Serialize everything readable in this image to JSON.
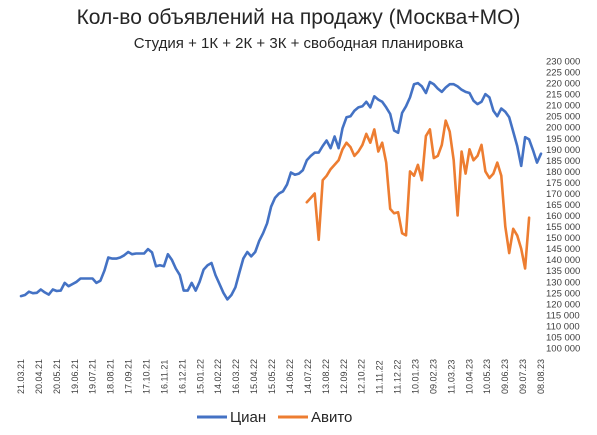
{
  "chart_data": {
    "type": "line",
    "title": "Кол-во объявлений на продажу (Москва+МО)",
    "subtitle": "Студия + 1К + 2К + 3К + свободная планировка",
    "xlabel": "",
    "ylabel": "",
    "ylim": [
      100000,
      230000
    ],
    "y_ticks": [
      "100 000",
      "105 000",
      "110 000",
      "115 000",
      "120 000",
      "125 000",
      "130 000",
      "135 000",
      "140 000",
      "145 000",
      "150 000",
      "155 000",
      "160 000",
      "165 000",
      "170 000",
      "175 000",
      "180 000",
      "185 000",
      "190 000",
      "195 000",
      "200 000",
      "205 000",
      "210 000",
      "215 000",
      "220 000",
      "225 000",
      "230 000"
    ],
    "x_ticks": [
      "21.03.21",
      "20.04.21",
      "20.05.21",
      "19.06.21",
      "19.07.21",
      "18.08.21",
      "17.09.21",
      "17.10.21",
      "16.11.21",
      "16.12.21",
      "15.01.22",
      "14.02.22",
      "16.03.22",
      "15.04.22",
      "15.05.22",
      "14.06.22",
      "14.07.22",
      "13.08.22",
      "12.09.22",
      "12.10.22",
      "11.11.22",
      "11.12.22",
      "10.01.23",
      "09.02.23",
      "11.03.23",
      "10.04.23",
      "10.05.23",
      "09.06.23",
      "09.07.23",
      "08.08.23"
    ],
    "grid": false,
    "legend_position": "bottom",
    "series": [
      {
        "name": "Циан",
        "color": "#4472C4",
        "values": [
          123500,
          124000,
          125500,
          124800,
          125000,
          126500,
          125200,
          124200,
          126500,
          125800,
          126000,
          129500,
          128000,
          129000,
          130000,
          131500,
          131500,
          131500,
          131500,
          129500,
          130500,
          135000,
          141000,
          140500,
          140500,
          141000,
          142000,
          143500,
          142500,
          142800,
          142800,
          142800,
          144800,
          143300,
          137000,
          137500,
          137000,
          142500,
          140000,
          136000,
          133000,
          126000,
          126000,
          129500,
          126000,
          130000,
          135500,
          137500,
          138500,
          133000,
          129000,
          125000,
          122000,
          124000,
          127500,
          134000,
          140500,
          143500,
          141500,
          143500,
          148500,
          152000,
          156500,
          164000,
          168000,
          170000,
          171000,
          174000,
          179500,
          178500,
          179000,
          180500,
          185000,
          187000,
          188500,
          188500,
          191500,
          194000,
          190500,
          195800,
          190500,
          199500,
          204500,
          205000,
          207500,
          209000,
          209500,
          211500,
          209000,
          214000,
          212500,
          211500,
          209000,
          206000,
          198500,
          197500,
          206500,
          209500,
          213500,
          219500,
          220000,
          218500,
          215500,
          220500,
          219500,
          217500,
          216000,
          218000,
          219500,
          219500,
          218500,
          217000,
          216000,
          215500,
          212000,
          210500,
          211500,
          215000,
          213500,
          207500,
          205000,
          208500,
          207000,
          204500,
          198000,
          191500,
          182500,
          195500,
          194500,
          189500,
          184000,
          188000
        ]
      },
      {
        "name": "Авито",
        "color": "#ED7D31",
        "values": [
          null,
          null,
          null,
          null,
          null,
          null,
          null,
          null,
          null,
          null,
          null,
          null,
          null,
          null,
          null,
          null,
          null,
          null,
          null,
          null,
          null,
          null,
          null,
          null,
          null,
          null,
          null,
          null,
          null,
          null,
          null,
          null,
          null,
          null,
          null,
          null,
          null,
          null,
          null,
          null,
          null,
          null,
          null,
          null,
          null,
          null,
          null,
          null,
          null,
          null,
          null,
          null,
          null,
          null,
          null,
          null,
          null,
          null,
          null,
          null,
          null,
          null,
          null,
          null,
          null,
          null,
          null,
          null,
          null,
          null,
          null,
          null,
          166000,
          168000,
          170000,
          149000,
          176000,
          178000,
          181000,
          183000,
          185000,
          190000,
          193000,
          191000,
          187000,
          189000,
          192000,
          197000,
          193000,
          199000,
          189000,
          193000,
          184000,
          163000,
          161000,
          161500,
          152000,
          151000,
          180000,
          178000,
          183000,
          176000,
          196000,
          199000,
          186000,
          187000,
          192000,
          203000,
          198000,
          185000,
          160000,
          189000,
          179000,
          190000,
          185000,
          187000,
          192000,
          180000,
          177000,
          179000,
          184000,
          178000,
          155000,
          143000,
          154000,
          151000,
          145000,
          136000,
          159000
        ]
      }
    ]
  }
}
